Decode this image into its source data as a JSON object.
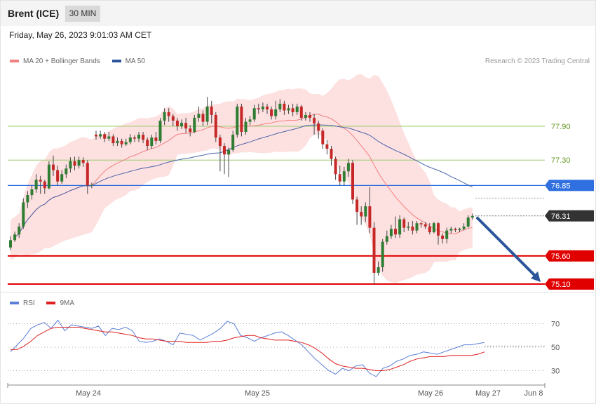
{
  "header": {
    "instrument": "Brent (ICE)",
    "timeframe": "30 MIN"
  },
  "datetime": "Friday, May 26, 2023 9:01:03 AM CET",
  "copyright": "Research © 2023 Trading Central",
  "legend_main": [
    {
      "label": "MA 20 + Bollinger Bands",
      "color": "#f08080"
    },
    {
      "label": "MA 50",
      "color": "#2a5599"
    }
  ],
  "legend_rsi": [
    {
      "label": "RSI",
      "color": "#5b7fd6"
    },
    {
      "label": "9MA",
      "color": "#e02020"
    }
  ],
  "colors": {
    "up_candle": "#2e7d32",
    "down_candle": "#c62828",
    "band_fill": "#fde0e0",
    "ma20": "#f08080",
    "ma50": "#4a64a8",
    "resistance": "#9bcc6b",
    "pivot": "#2f6fe0",
    "support": "#e00000",
    "current": "#333333",
    "arrow": "#2a5599"
  },
  "chart_data": [
    {
      "type": "candlestick",
      "title": "",
      "x_tick_labels": [
        "May 24",
        "May 25",
        "May 26",
        "May 27",
        "Jun 8"
      ],
      "ylim": [
        74.95,
        78.5
      ],
      "grid": false,
      "legend_position": "top-left",
      "levels": [
        {
          "label": "77.90",
          "value": 77.9,
          "kind": "resistance"
        },
        {
          "label": "77.30",
          "value": 77.3,
          "kind": "resistance"
        },
        {
          "label": "76.85",
          "value": 76.85,
          "kind": "pivot"
        },
        {
          "label": "76.31",
          "value": 76.31,
          "kind": "current"
        },
        {
          "label": "75.60",
          "value": 75.6,
          "kind": "support"
        },
        {
          "label": "75.10",
          "value": 75.1,
          "kind": "support"
        }
      ],
      "forecast_arrow": {
        "from": 76.31,
        "to": 75.1
      },
      "candles": [
        [
          75.75,
          75.88,
          75.7,
          75.95
        ],
        [
          75.88,
          75.98,
          75.85,
          76.03
        ],
        [
          75.98,
          76.12,
          75.92,
          76.18
        ],
        [
          76.12,
          76.55,
          76.08,
          76.62
        ],
        [
          76.55,
          76.68,
          76.45,
          76.75
        ],
        [
          76.68,
          76.78,
          76.6,
          76.85
        ],
        [
          76.78,
          76.95,
          76.72,
          77.05
        ],
        [
          76.95,
          76.92,
          76.7,
          77.02
        ],
        [
          76.92,
          76.8,
          76.7,
          76.95
        ],
        [
          76.8,
          77.22,
          76.78,
          77.28
        ],
        [
          77.22,
          77.12,
          77.02,
          77.38
        ],
        [
          77.12,
          76.92,
          76.85,
          77.2
        ],
        [
          76.92,
          77.05,
          76.88,
          77.12
        ],
        [
          77.05,
          77.15,
          76.98,
          77.22
        ],
        [
          77.15,
          77.28,
          77.08,
          77.35
        ],
        [
          77.28,
          77.2,
          77.12,
          77.36
        ],
        [
          77.2,
          77.3,
          77.15,
          77.36
        ],
        [
          77.3,
          77.25,
          77.18,
          77.35
        ],
        [
          77.25,
          76.85,
          76.7,
          77.3
        ],
        [
          76.85,
          76.86,
          76.8,
          76.9
        ],
        [
          77.75,
          77.72,
          77.66,
          77.82
        ],
        [
          77.72,
          77.76,
          77.68,
          77.82
        ],
        [
          77.76,
          77.68,
          77.62,
          77.8
        ],
        [
          77.68,
          77.72,
          77.64,
          77.8
        ],
        [
          77.72,
          77.6,
          77.55,
          77.76
        ],
        [
          77.6,
          77.64,
          77.55,
          77.7
        ],
        [
          77.64,
          77.58,
          77.52,
          77.68
        ],
        [
          77.58,
          77.62,
          77.55,
          77.68
        ],
        [
          77.62,
          77.7,
          77.58,
          77.76
        ],
        [
          77.7,
          77.68,
          77.62,
          77.74
        ],
        [
          77.68,
          77.75,
          77.62,
          77.8
        ],
        [
          77.75,
          77.66,
          77.6,
          77.8
        ],
        [
          77.66,
          77.55,
          77.48,
          77.7
        ],
        [
          77.55,
          77.7,
          77.5,
          77.75
        ],
        [
          77.7,
          77.64,
          77.58,
          77.8
        ],
        [
          77.64,
          78.0,
          77.6,
          78.05
        ],
        [
          78.0,
          78.15,
          77.92,
          78.22
        ],
        [
          78.15,
          78.08,
          77.98,
          78.22
        ],
        [
          78.08,
          78.0,
          77.9,
          78.12
        ],
        [
          78.0,
          77.9,
          77.82,
          78.05
        ],
        [
          77.9,
          77.96,
          77.85,
          78.02
        ],
        [
          77.96,
          77.86,
          77.78,
          78.05
        ],
        [
          77.86,
          77.8,
          77.72,
          77.92
        ],
        [
          77.8,
          78.05,
          77.78,
          78.1
        ],
        [
          78.05,
          78.12,
          77.98,
          78.25
        ],
        [
          78.12,
          77.98,
          77.9,
          78.18
        ],
        [
          77.98,
          78.25,
          77.92,
          78.42
        ],
        [
          78.25,
          78.1,
          77.95,
          78.35
        ],
        [
          78.1,
          77.7,
          77.62,
          78.15
        ],
        [
          77.7,
          77.55,
          77.1,
          77.75
        ],
        [
          77.55,
          77.4,
          77.05,
          77.6
        ],
        [
          77.4,
          77.48,
          77.0,
          77.52
        ],
        [
          77.48,
          77.75,
          77.45,
          77.82
        ],
        [
          77.75,
          78.25,
          77.7,
          78.3
        ],
        [
          78.25,
          77.8,
          77.72,
          78.3
        ],
        [
          77.8,
          77.98,
          77.75,
          78.05
        ],
        [
          77.98,
          78.02,
          77.92,
          78.08
        ],
        [
          78.02,
          78.22,
          77.98,
          78.28
        ],
        [
          78.22,
          78.2,
          78.12,
          78.3
        ],
        [
          78.2,
          78.25,
          78.15,
          78.32
        ],
        [
          78.25,
          78.2,
          78.12,
          78.3
        ],
        [
          78.2,
          78.08,
          78.02,
          78.25
        ],
        [
          78.08,
          78.2,
          78.02,
          78.35
        ],
        [
          78.2,
          78.3,
          78.15,
          78.38
        ],
        [
          78.3,
          78.18,
          78.1,
          78.35
        ],
        [
          78.18,
          78.22,
          78.12,
          78.28
        ],
        [
          78.22,
          78.15,
          78.08,
          78.3
        ],
        [
          78.15,
          78.25,
          78.1,
          78.3
        ],
        [
          78.25,
          78.05,
          78.0,
          78.28
        ],
        [
          78.05,
          78.1,
          78.0,
          78.15
        ],
        [
          78.1,
          78.05,
          77.98,
          78.15
        ],
        [
          78.05,
          77.95,
          77.75,
          78.12
        ],
        [
          77.95,
          77.82,
          77.68,
          78.0
        ],
        [
          77.82,
          77.58,
          77.5,
          77.86
        ],
        [
          77.58,
          77.5,
          77.4,
          77.65
        ],
        [
          77.5,
          77.32,
          77.2,
          77.55
        ],
        [
          77.32,
          77.05,
          76.95,
          77.36
        ],
        [
          77.05,
          76.92,
          76.85,
          77.2
        ],
        [
          76.92,
          77.1,
          76.85,
          77.18
        ],
        [
          77.1,
          77.25,
          77.0,
          77.32
        ],
        [
          77.25,
          76.6,
          76.52,
          77.3
        ],
        [
          76.6,
          76.38,
          76.15,
          76.65
        ],
        [
          76.38,
          76.3,
          76.15,
          76.48
        ],
        [
          76.3,
          76.48,
          76.2,
          76.55
        ],
        [
          76.48,
          76.1,
          76.0,
          76.82
        ],
        [
          76.1,
          75.3,
          75.1,
          76.2
        ],
        [
          75.3,
          75.4,
          75.25,
          75.5
        ],
        [
          75.4,
          75.85,
          75.32,
          75.9
        ],
        [
          75.85,
          75.95,
          75.8,
          76.05
        ],
        [
          75.95,
          76.08,
          75.9,
          76.15
        ],
        [
          76.08,
          75.98,
          75.92,
          76.3
        ],
        [
          75.98,
          76.25,
          75.92,
          76.32
        ],
        [
          76.25,
          76.1,
          76.02,
          76.28
        ],
        [
          76.1,
          76.12,
          76.05,
          76.2
        ],
        [
          76.12,
          76.05,
          75.98,
          76.22
        ],
        [
          76.05,
          76.18,
          76.0,
          76.22
        ],
        [
          76.18,
          76.16,
          76.1,
          76.2
        ],
        [
          76.16,
          76.12,
          76.08,
          76.2
        ],
        [
          76.12,
          76.02,
          75.98,
          76.18
        ],
        [
          76.02,
          76.18,
          76.0,
          76.2
        ],
        [
          76.18,
          75.96,
          75.8,
          76.2
        ],
        [
          75.96,
          75.9,
          75.82,
          76.0
        ],
        [
          75.9,
          76.05,
          75.82,
          76.1
        ],
        [
          76.05,
          76.08,
          76.0,
          76.12
        ],
        [
          76.08,
          76.06,
          76.02,
          76.1
        ],
        [
          76.06,
          76.08,
          76.02,
          76.1
        ],
        [
          76.08,
          76.12,
          76.05,
          76.18
        ],
        [
          76.12,
          76.28,
          76.1,
          76.32
        ],
        [
          76.28,
          76.31,
          76.24,
          76.35
        ]
      ]
    },
    {
      "type": "line",
      "title": "",
      "y_tick_labels": [
        "70",
        "50",
        "30"
      ],
      "ylim": [
        20,
        80
      ],
      "guides": [
        70,
        50,
        30
      ],
      "series": [
        {
          "name": "RSI",
          "values": [
            46,
            52,
            58,
            66,
            69,
            71,
            66,
            73,
            64,
            69,
            68,
            67,
            66,
            68,
            60,
            66,
            65,
            67,
            64,
            55,
            54,
            55,
            57,
            55,
            52,
            62,
            61,
            60,
            56,
            59,
            62,
            66,
            72,
            70,
            60,
            58,
            55,
            58,
            60,
            62,
            63,
            60,
            56,
            52,
            46,
            40,
            35,
            30,
            27,
            32,
            30,
            34,
            35,
            28,
            25,
            32,
            34,
            38,
            40,
            43,
            44,
            46,
            45,
            44,
            46,
            48,
            50,
            52,
            52,
            53,
            54
          ]
        },
        {
          "name": "9MA",
          "values": [
            48,
            48,
            51,
            55,
            60,
            63,
            66,
            67,
            67,
            67,
            67,
            66,
            65,
            64,
            63,
            63,
            62,
            61,
            60,
            58,
            57,
            57,
            56,
            55,
            55,
            55,
            54,
            54,
            54,
            54,
            55,
            55,
            56,
            58,
            59,
            60,
            60,
            58,
            57,
            56,
            56,
            56,
            55,
            54,
            52,
            49,
            45,
            40,
            36,
            34,
            33,
            32,
            32,
            31,
            30,
            30,
            31,
            33,
            35,
            38,
            40,
            41,
            42,
            42,
            42,
            43,
            43,
            43,
            43,
            44,
            46
          ]
        }
      ]
    }
  ]
}
